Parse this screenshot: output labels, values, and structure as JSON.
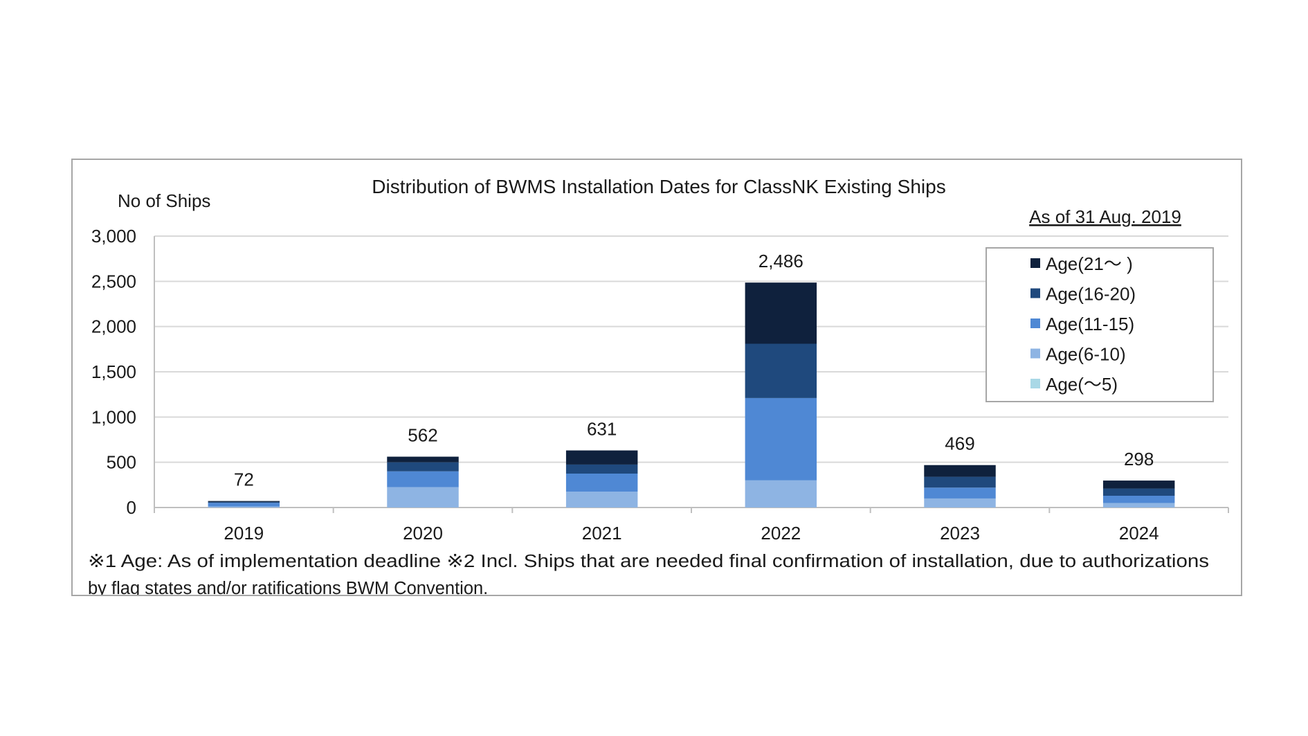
{
  "chart_data": {
    "type": "bar",
    "stacked": true,
    "title": "Distribution of BWMS Installation Dates for ClassNK Existing Ships",
    "ylabel": "No of Ships",
    "xlabel": "",
    "as_of": "As of 31 Aug. 2019",
    "ylim": [
      0,
      3000
    ],
    "yticks": [
      0,
      500,
      1000,
      1500,
      2000,
      2500,
      3000
    ],
    "ytick_labels": [
      "0",
      "500",
      "1,000",
      "1,500",
      "2,000",
      "2,500",
      "3,000"
    ],
    "grid": true,
    "legend_position": "top-right",
    "categories": [
      "2019",
      "2020",
      "2021",
      "2022",
      "2023",
      "2024"
    ],
    "totals": [
      72,
      562,
      631,
      2486,
      469,
      298
    ],
    "total_labels": [
      "72",
      "562",
      "631",
      "2,486",
      "469",
      "298"
    ],
    "series": [
      {
        "name": "Age(〜5)",
        "color": "#a9d8e6",
        "values": [
          0,
          0,
          0,
          0,
          0,
          0
        ]
      },
      {
        "name": "Age(6-10)",
        "color": "#8eb4e3",
        "values": [
          12,
          225,
          175,
          300,
          100,
          50
        ]
      },
      {
        "name": "Age(11-15)",
        "color": "#4f88d4",
        "values": [
          40,
          175,
          200,
          910,
          120,
          80
        ]
      },
      {
        "name": "Age(16-20)",
        "color": "#1f497d",
        "values": [
          10,
          100,
          100,
          600,
          120,
          80
        ]
      },
      {
        "name": "Age(21〜 )",
        "color": "#0f213d",
        "values": [
          10,
          62,
          156,
          676,
          129,
          88
        ]
      }
    ],
    "footnote_line1": "※1 Age: As of implementation deadline ※2 Incl. Ships that are needed final confirmation of installation, due to authorizations",
    "footnote_line2": "by flag states and/or ratifications BWM Convention."
  },
  "colors": {
    "grid": "#d9d9d9",
    "axis": "#bfbfbf",
    "frame": "#a6a6a6",
    "legend_border": "#a6a6a6"
  }
}
